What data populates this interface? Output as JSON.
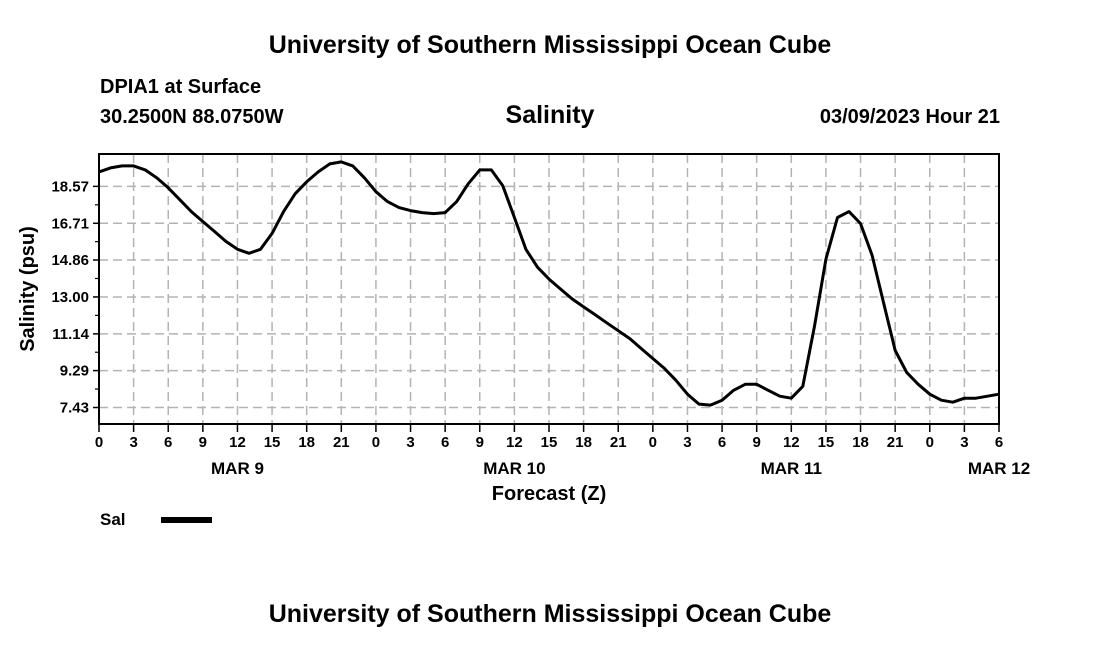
{
  "header": {
    "title": "University of Southern Mississippi Ocean Cube",
    "station": "DPIA1 at Surface",
    "coords": "30.2500N  88.0750W",
    "date": "03/09/2023 Hour 21"
  },
  "footer": {
    "title": "University of Southern Mississippi Ocean Cube"
  },
  "legend": {
    "label": "Sal",
    "color": "#000000"
  },
  "chart_data": {
    "type": "line",
    "title": "Salinity",
    "xlabel": "Forecast (Z)",
    "ylabel": "Salinity (psu)",
    "xlim": [
      0,
      78
    ],
    "ylim": [
      6.6,
      20.2
    ],
    "grid": true,
    "legend_position": "bottom-left",
    "yticks": [
      "7.43",
      "9.29",
      "11.14",
      "13.00",
      "14.86",
      "16.71",
      "18.57"
    ],
    "xticks": [
      "0",
      "3",
      "6",
      "9",
      "12",
      "15",
      "18",
      "21",
      "0",
      "3",
      "6",
      "9",
      "12",
      "15",
      "18",
      "21",
      "0",
      "3",
      "6",
      "9",
      "12",
      "15",
      "18",
      "21",
      "0",
      "3",
      "6"
    ],
    "day_labels": [
      {
        "label": "MAR 9",
        "hour": 12
      },
      {
        "label": "MAR 10",
        "hour": 36
      },
      {
        "label": "MAR 11",
        "hour": 60
      },
      {
        "label": "MAR 12",
        "hour": 78
      }
    ],
    "series": [
      {
        "name": "Sal",
        "x": [
          0,
          1,
          2,
          3,
          4,
          5,
          6,
          7,
          8,
          9,
          10,
          11,
          12,
          13,
          14,
          15,
          16,
          17,
          18,
          19,
          20,
          21,
          22,
          23,
          24,
          25,
          26,
          27,
          28,
          29,
          30,
          31,
          32,
          33,
          34,
          35,
          36,
          37,
          38,
          39,
          40,
          41,
          42,
          43,
          44,
          45,
          46,
          47,
          48,
          49,
          50,
          51,
          52,
          53,
          54,
          55,
          56,
          57,
          58,
          59,
          60,
          61,
          62,
          63,
          64,
          65,
          66,
          67,
          68,
          69,
          70,
          71,
          72,
          73,
          74,
          75,
          76,
          77,
          78
        ],
        "values": [
          19.3,
          19.5,
          19.6,
          19.6,
          19.4,
          19.0,
          18.5,
          17.9,
          17.3,
          16.8,
          16.3,
          15.8,
          15.4,
          15.2,
          15.4,
          16.2,
          17.3,
          18.2,
          18.8,
          19.3,
          19.7,
          19.8,
          19.6,
          19.0,
          18.3,
          17.8,
          17.5,
          17.35,
          17.25,
          17.2,
          17.25,
          17.8,
          18.7,
          19.4,
          19.4,
          18.6,
          17.0,
          15.4,
          14.5,
          13.9,
          13.4,
          12.9,
          12.5,
          12.1,
          11.7,
          11.3,
          10.9,
          10.4,
          9.9,
          9.4,
          8.8,
          8.1,
          7.6,
          7.55,
          7.8,
          8.3,
          8.6,
          8.6,
          8.3,
          8.0,
          7.9,
          8.5,
          11.5,
          14.9,
          17.0,
          17.3,
          16.7,
          15.1,
          12.7,
          10.3,
          9.2,
          8.6,
          8.1,
          7.8,
          7.7,
          7.9,
          7.9,
          8.0,
          8.1
        ]
      }
    ]
  }
}
